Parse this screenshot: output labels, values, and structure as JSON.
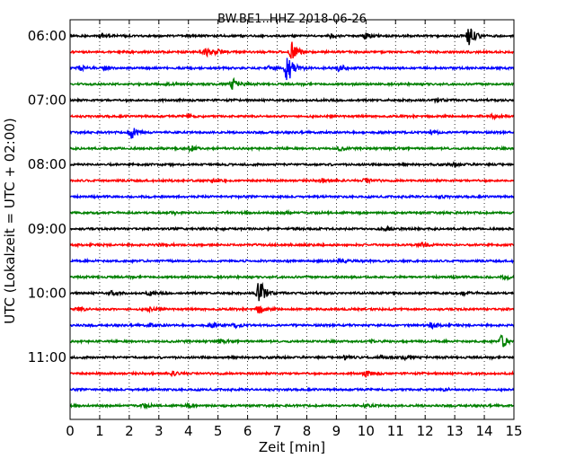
{
  "chart_data": {
    "type": "line",
    "title": "BW.BE1..HHZ 2018-06-26",
    "xlabel": "Zeit  [min]",
    "ylabel": "UTC (Lokalzeit = UTC + 02:00)",
    "xlim": [
      0,
      15
    ],
    "x_ticks": [
      0,
      1,
      2,
      3,
      4,
      5,
      6,
      7,
      8,
      9,
      10,
      11,
      12,
      13,
      14,
      15
    ],
    "x_tick_labels": [
      "0",
      "1",
      "2",
      "3",
      "4",
      "5",
      "6",
      "7",
      "8",
      "9",
      "10",
      "11",
      "12",
      "13",
      "14",
      "15"
    ],
    "y_tick_labels": [
      "06:00",
      "07:00",
      "08:00",
      "09:00",
      "10:00",
      "11:00"
    ],
    "grid": "vertical dotted",
    "trace_interval_minutes": 15,
    "series": [
      {
        "start": "06:00",
        "color": "#000000",
        "events": [
          {
            "t": 13.5,
            "amp": 2.6
          },
          {
            "t": 1.1,
            "amp": 0.6
          },
          {
            "t": 10.0,
            "amp": 0.7
          },
          {
            "t": 8.8,
            "amp": 0.4
          }
        ]
      },
      {
        "start": "06:15",
        "color": "#ff0000",
        "events": [
          {
            "t": 7.5,
            "amp": 2.4
          },
          {
            "t": 4.6,
            "amp": 1.0
          },
          {
            "t": 5.0,
            "amp": 0.5
          }
        ]
      },
      {
        "start": "06:30",
        "color": "#0000ff",
        "events": [
          {
            "t": 0.3,
            "amp": 0.8
          },
          {
            "t": 7.35,
            "amp": 4.5
          },
          {
            "t": 9.1,
            "amp": 1.0
          },
          {
            "t": 6.7,
            "amp": 0.5
          },
          {
            "t": 1.2,
            "amp": 0.5
          }
        ]
      },
      {
        "start": "06:45",
        "color": "#008000",
        "events": [
          {
            "t": 5.5,
            "amp": 1.5
          },
          {
            "t": 3.3,
            "amp": 0.4
          }
        ]
      },
      {
        "start": "07:00",
        "color": "#000000",
        "events": [
          {
            "t": 12.4,
            "amp": 0.6
          }
        ]
      },
      {
        "start": "07:15",
        "color": "#ff0000",
        "events": [
          {
            "t": 4.0,
            "amp": 0.5
          },
          {
            "t": 14.3,
            "amp": 0.5
          }
        ]
      },
      {
        "start": "07:30",
        "color": "#0000ff",
        "events": [
          {
            "t": 2.1,
            "amp": 1.9
          },
          {
            "t": 12.2,
            "amp": 0.5
          }
        ]
      },
      {
        "start": "07:45",
        "color": "#008000",
        "events": [
          {
            "t": 4.1,
            "amp": 0.6
          },
          {
            "t": 9.1,
            "amp": 0.4
          }
        ]
      },
      {
        "start": "08:00",
        "color": "#000000",
        "events": [
          {
            "t": 13.0,
            "amp": 0.4
          }
        ]
      },
      {
        "start": "08:15",
        "color": "#ff0000",
        "events": [
          {
            "t": 8.5,
            "amp": 0.6
          },
          {
            "t": 10.0,
            "amp": 0.5
          },
          {
            "t": 4.8,
            "amp": 0.4
          }
        ]
      },
      {
        "start": "08:30",
        "color": "#0000ff",
        "events": [
          {
            "t": 12.5,
            "amp": 0.3
          }
        ]
      },
      {
        "start": "08:45",
        "color": "#008000",
        "events": [
          {
            "t": 3.5,
            "amp": 0.4
          },
          {
            "t": 7.3,
            "amp": 0.3
          }
        ]
      },
      {
        "start": "09:00",
        "color": "#000000",
        "events": [
          {
            "t": 10.7,
            "amp": 0.5
          }
        ]
      },
      {
        "start": "09:15",
        "color": "#ff0000",
        "events": [
          {
            "t": 11.9,
            "amp": 0.5
          },
          {
            "t": 3.1,
            "amp": 0.3
          }
        ]
      },
      {
        "start": "09:30",
        "color": "#0000ff",
        "events": [
          {
            "t": 9.1,
            "amp": 0.6
          }
        ]
      },
      {
        "start": "09:45",
        "color": "#008000",
        "events": [
          {
            "t": 14.7,
            "amp": 0.4
          }
        ]
      },
      {
        "start": "10:00",
        "color": "#000000",
        "events": [
          {
            "t": 6.4,
            "amp": 4.0
          },
          {
            "t": 1.4,
            "amp": 0.5
          },
          {
            "t": 2.7,
            "amp": 0.6
          },
          {
            "t": 13.3,
            "amp": 0.5
          }
        ]
      },
      {
        "start": "10:15",
        "color": "#ff0000",
        "events": [
          {
            "t": 0.3,
            "amp": 0.6
          },
          {
            "t": 6.4,
            "amp": 1.2
          },
          {
            "t": 2.7,
            "amp": 0.5
          }
        ]
      },
      {
        "start": "10:30",
        "color": "#0000ff",
        "events": [
          {
            "t": 12.2,
            "amp": 0.9
          },
          {
            "t": 4.8,
            "amp": 0.6
          },
          {
            "t": 5.6,
            "amp": 0.5
          },
          {
            "t": 2.7,
            "amp": 0.4
          }
        ]
      },
      {
        "start": "10:45",
        "color": "#008000",
        "events": [
          {
            "t": 14.6,
            "amp": 1.6
          },
          {
            "t": 5.1,
            "amp": 0.4
          },
          {
            "t": 10.2,
            "amp": 0.4
          }
        ]
      },
      {
        "start": "11:00",
        "color": "#000000",
        "events": [
          {
            "t": 9.3,
            "amp": 0.7
          },
          {
            "t": 11.3,
            "amp": 0.4
          },
          {
            "t": 10.5,
            "amp": 0.4
          }
        ]
      },
      {
        "start": "11:15",
        "color": "#ff0000",
        "events": [
          {
            "t": 3.5,
            "amp": 0.6
          },
          {
            "t": 10.0,
            "amp": 0.8
          }
        ]
      },
      {
        "start": "11:30",
        "color": "#0000ff",
        "events": [
          {
            "t": 12.7,
            "amp": 0.3
          }
        ]
      },
      {
        "start": "11:45",
        "color": "#008000",
        "events": [
          {
            "t": 2.5,
            "amp": 0.4
          },
          {
            "t": 4.0,
            "amp": 0.4
          },
          {
            "t": 10.0,
            "amp": 0.4
          }
        ]
      }
    ]
  }
}
